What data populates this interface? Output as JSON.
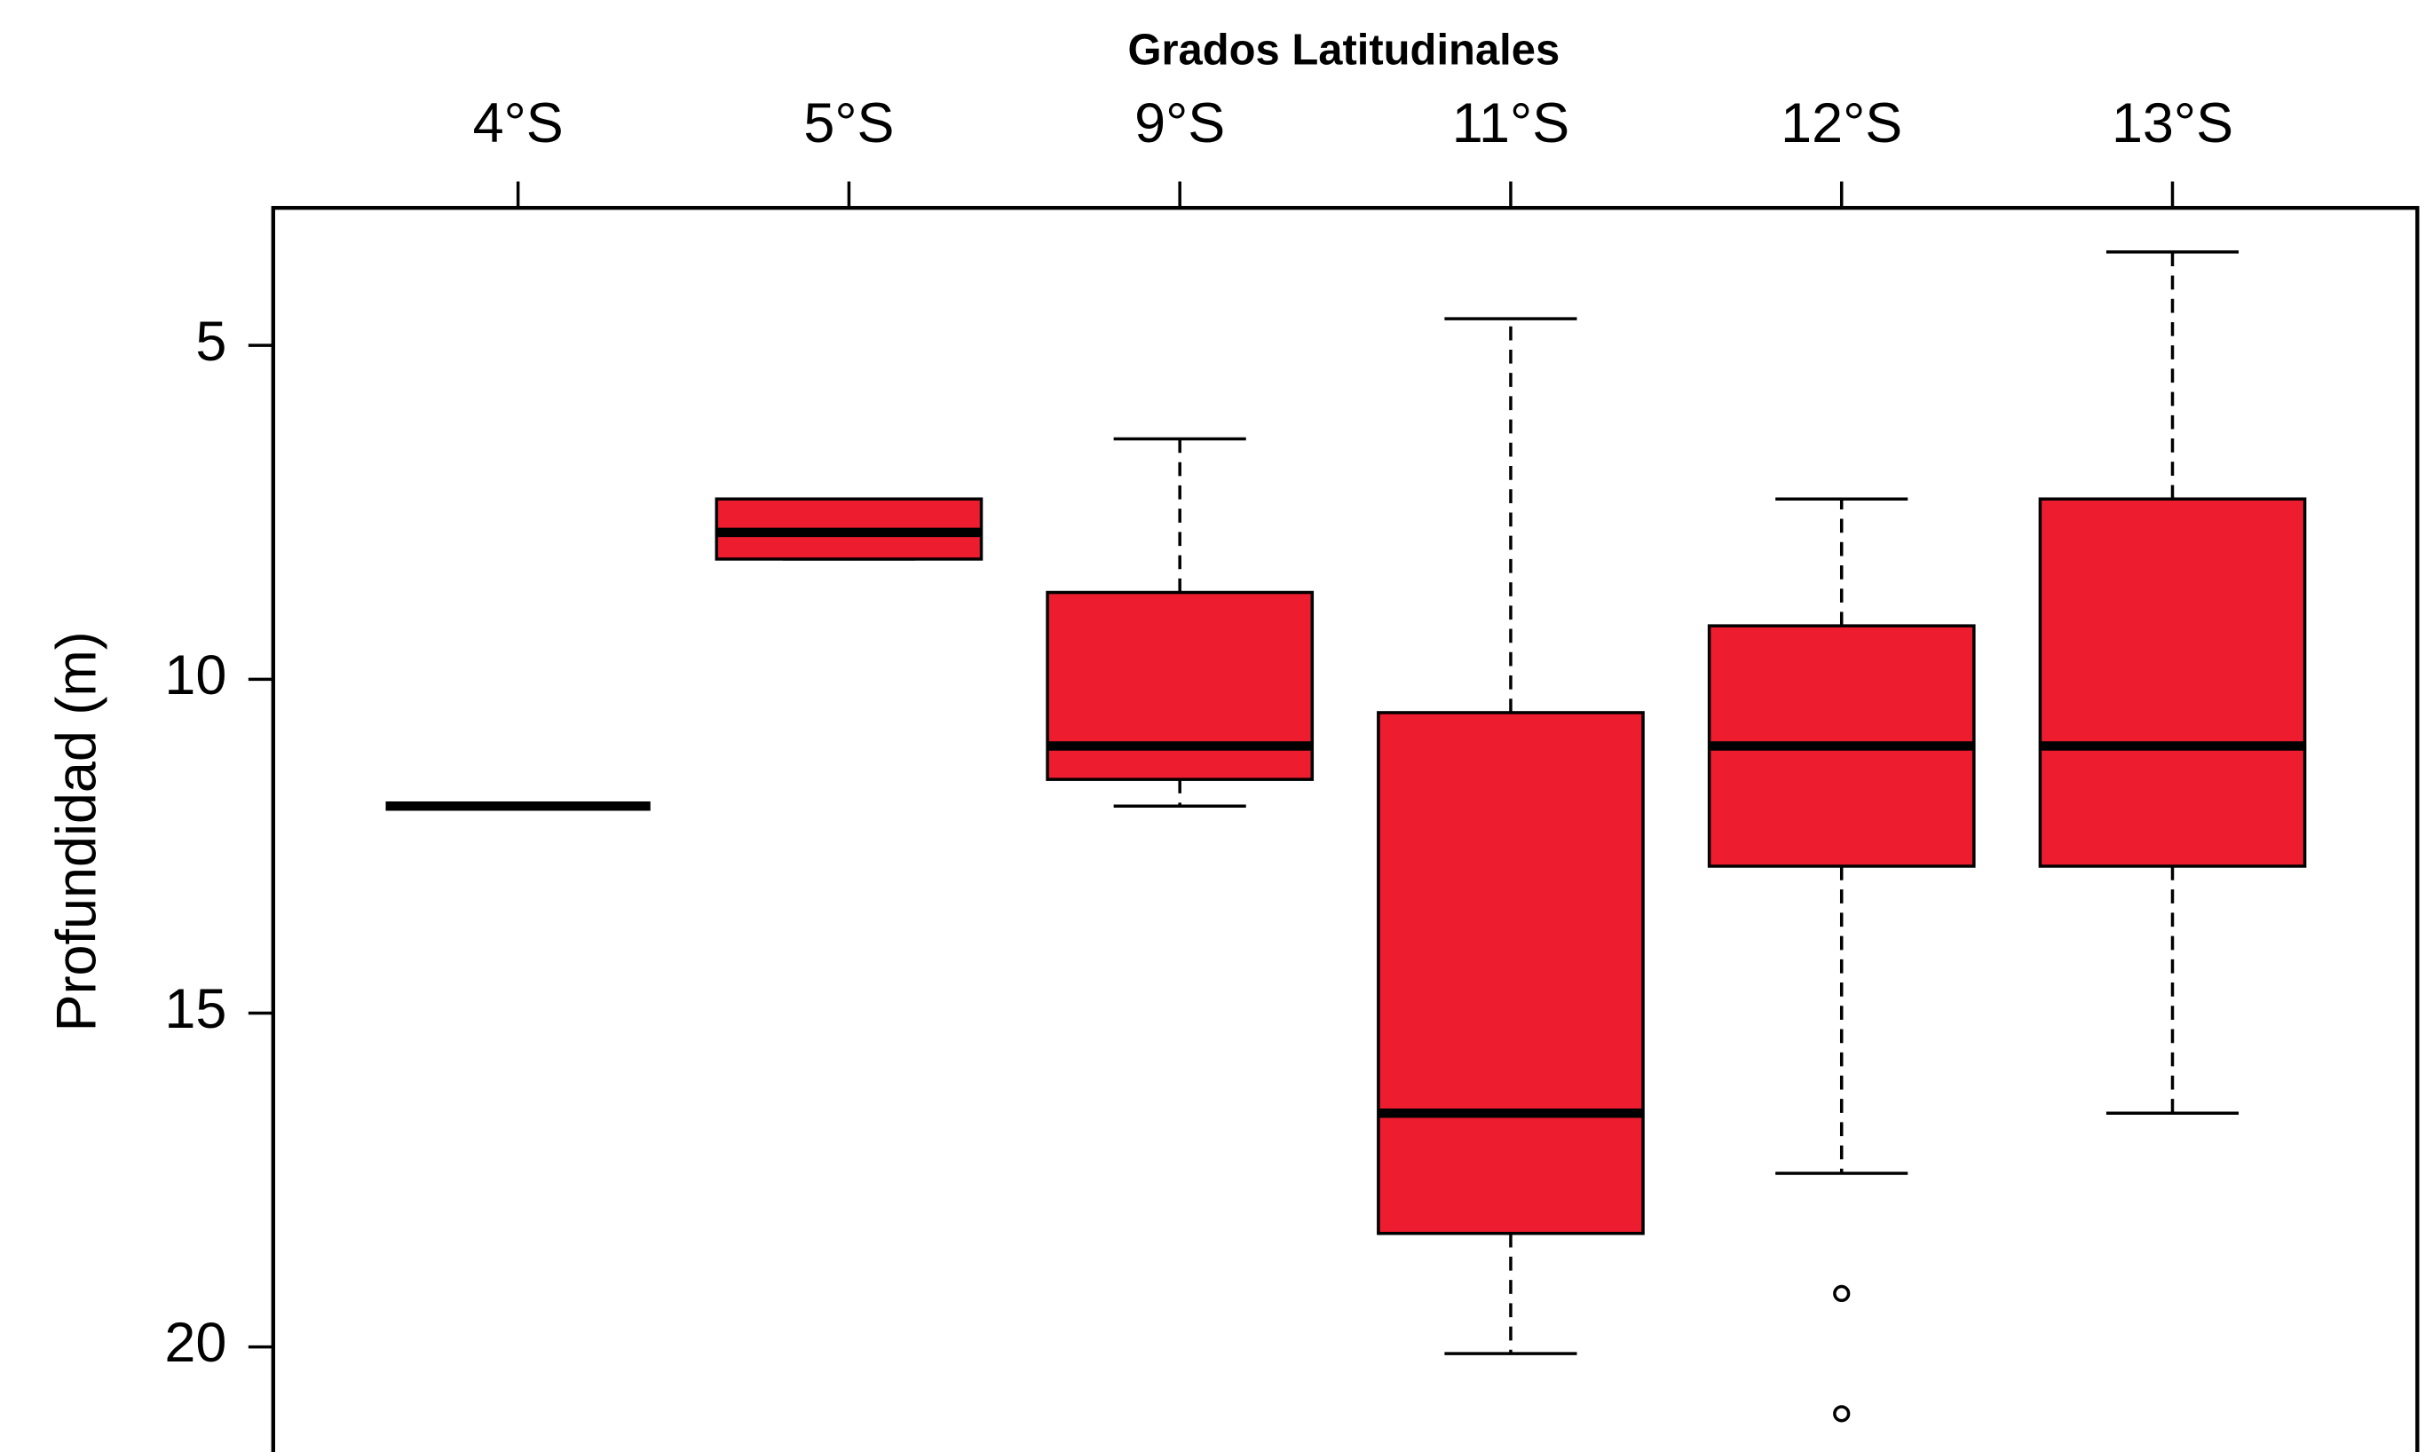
{
  "chart_data": {
    "type": "box",
    "title": "Grados Latitudinales",
    "y_label": "Profundidad (m)",
    "categories": [
      "4°S",
      "5°S",
      "9°S",
      "11°S",
      "12°S",
      "13°S"
    ],
    "color": "#ed1c2e",
    "y_inverted": true,
    "ylim": [
      2.94,
      21.69
    ],
    "yticks": [
      5,
      10,
      15,
      20
    ],
    "boxes": [
      {
        "min": 11.9,
        "q1": 11.9,
        "median": 11.9,
        "q3": 11.9,
        "max": 11.9,
        "outliers": []
      },
      {
        "min": 7.3,
        "q1": 7.3,
        "median": 7.8,
        "q3": 8.2,
        "max": 8.2,
        "outliers": []
      },
      {
        "min": 6.4,
        "q1": 8.7,
        "median": 11.0,
        "q3": 11.5,
        "max": 11.9,
        "outliers": []
      },
      {
        "min": 4.6,
        "q1": 10.5,
        "median": 16.5,
        "q3": 18.3,
        "max": 20.1,
        "outliers": []
      },
      {
        "min": 7.3,
        "q1": 9.2,
        "median": 11.0,
        "q3": 12.8,
        "max": 17.4,
        "outliers": [
          19.2,
          21.0
        ]
      },
      {
        "min": 3.6,
        "q1": 7.3,
        "median": 11.0,
        "q3": 12.8,
        "max": 16.5,
        "outliers": []
      }
    ]
  }
}
